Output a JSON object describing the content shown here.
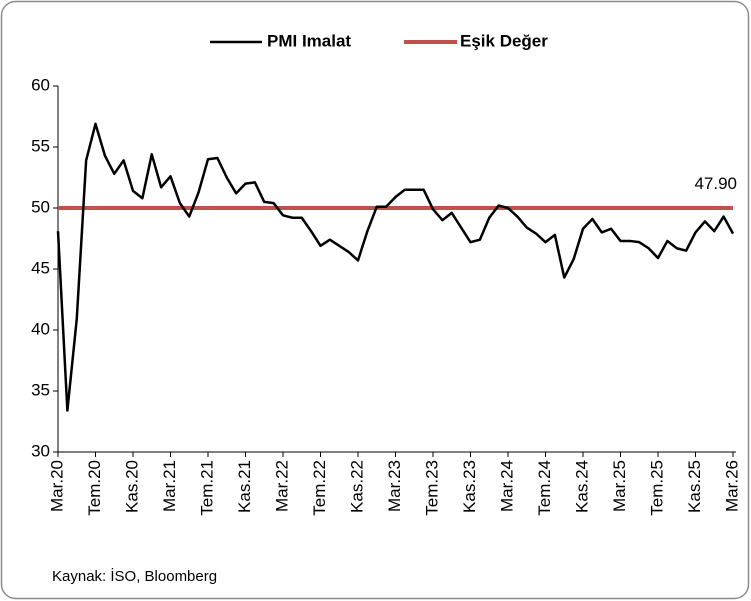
{
  "chart_data": {
    "type": "line",
    "categories": [
      "Mar.20",
      null,
      null,
      null,
      "Tem.20",
      null,
      null,
      null,
      "Kas.20",
      null,
      null,
      null,
      "Mar.21",
      null,
      null,
      null,
      "Tem.21",
      null,
      null,
      null,
      "Kas.21",
      null,
      null,
      null,
      "Mar.22",
      null,
      null,
      null,
      "Tem.22",
      null,
      null,
      null,
      "Kas.22",
      null,
      null,
      null,
      "Mar.23",
      null,
      null,
      null,
      "Tem.23",
      null,
      null,
      null,
      "Kas.23",
      null,
      null,
      null,
      "Mar.24",
      null,
      null,
      null,
      "Tem.24",
      null,
      null,
      null,
      "Kas.24",
      null,
      null,
      null,
      "Mar.25",
      null,
      null,
      null,
      "Tem.25",
      null,
      null,
      null,
      "Kas.25",
      null,
      null,
      null,
      "Mar.26"
    ],
    "series": [
      {
        "name": "PMI Imalat",
        "color": "#000000",
        "values": [
          48.1,
          33.4,
          40.9,
          53.9,
          56.9,
          54.3,
          52.8,
          53.9,
          51.4,
          50.8,
          54.4,
          51.7,
          52.6,
          50.4,
          49.3,
          51.3,
          54.0,
          54.1,
          52.5,
          51.2,
          52.0,
          52.1,
          50.5,
          50.4,
          49.4,
          49.2,
          49.2,
          48.1,
          46.9,
          47.4,
          46.9,
          46.4,
          45.7,
          48.1,
          50.1,
          50.1,
          50.9,
          51.5,
          51.5,
          51.5,
          49.9,
          49.0,
          49.6,
          48.4,
          47.2,
          47.4,
          49.2,
          50.2,
          50.0,
          49.3,
          48.4,
          47.9,
          47.2,
          47.8,
          44.3,
          45.8,
          48.3,
          49.1,
          48.0,
          48.3,
          47.3,
          47.3,
          47.2,
          46.7,
          45.9,
          47.3,
          46.7,
          46.5,
          48.0,
          48.9,
          48.1,
          49.3,
          47.9
        ],
        "value_labels": [
          null,
          null,
          null,
          null,
          null,
          null,
          null,
          null,
          null,
          null,
          null,
          null,
          null,
          null,
          null,
          null,
          null,
          null,
          null,
          null,
          null,
          null,
          null,
          null,
          null,
          null,
          null,
          null,
          null,
          null,
          null,
          null,
          null,
          null,
          null,
          null,
          null,
          null,
          null,
          null,
          null,
          null,
          null,
          null,
          null,
          null,
          null,
          null,
          null,
          null,
          null,
          null,
          null,
          null,
          null,
          null,
          null,
          null,
          null,
          null,
          null,
          null,
          null,
          null,
          null,
          null,
          null,
          null,
          null,
          null,
          null,
          null,
          "47.90"
        ]
      }
    ],
    "threshold": {
      "name": "Eşik Değer",
      "value": 50,
      "color": "#c0504d"
    },
    "ylim": [
      30,
      60
    ],
    "yticks": [
      30,
      35,
      40,
      45,
      50,
      55,
      60
    ],
    "grid": false,
    "legend": "top",
    "source": "Kaynak: İSO, Bloomberg"
  }
}
